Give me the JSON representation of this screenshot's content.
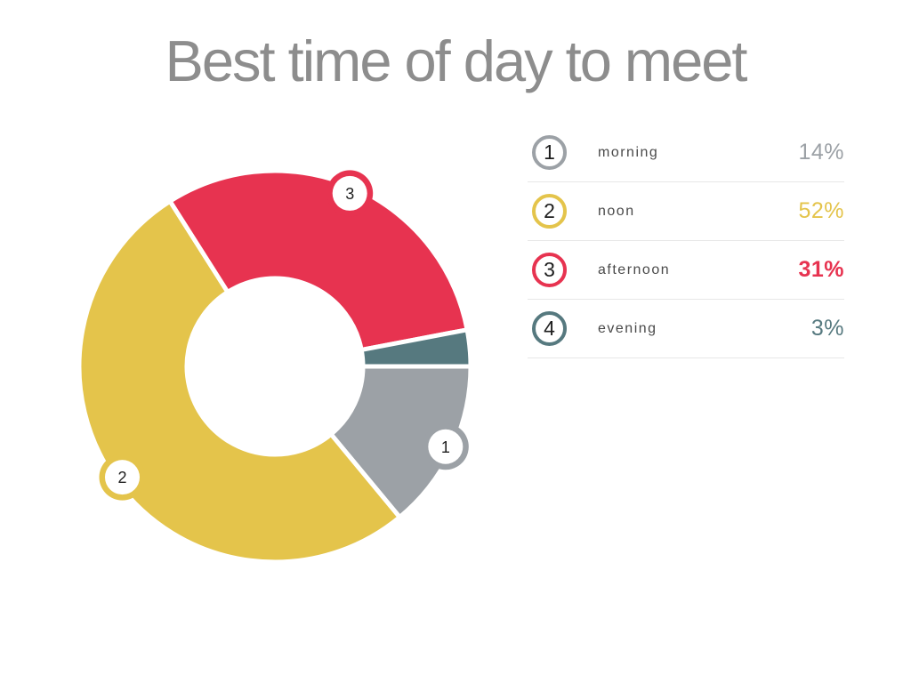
{
  "chart_data": {
    "type": "donut",
    "title": "Best time of day to meet",
    "categories": [
      "morning",
      "noon",
      "afternoon",
      "evening"
    ],
    "values": [
      14,
      52,
      31,
      3
    ],
    "unit": "%",
    "colors": [
      "#9CA1A6",
      "#E4C44B",
      "#E73350",
      "#56797F"
    ],
    "slice_badges": [
      "1",
      "2",
      "3",
      null
    ],
    "start_angle_deg": 0,
    "direction": "clockwise",
    "donut_hole_ratio": 0.45,
    "slice_gap_white_stroke": true,
    "legend_position": "right",
    "highlight_index": 2,
    "title_color": "#8d8d8d"
  },
  "legend": {
    "rows": [
      {
        "num": "1",
        "label": "morning",
        "value": "14%"
      },
      {
        "num": "2",
        "label": "noon",
        "value": "52%"
      },
      {
        "num": "3",
        "label": "afternoon",
        "value": "31%"
      },
      {
        "num": "4",
        "label": "evening",
        "value": "3%"
      }
    ]
  }
}
